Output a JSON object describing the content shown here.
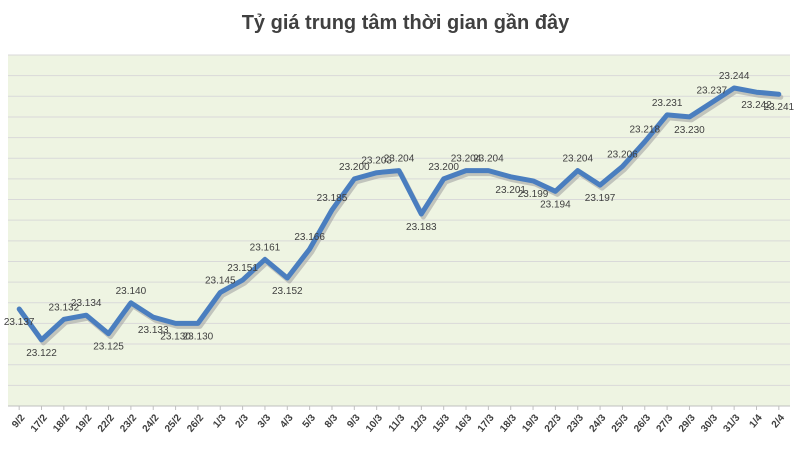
{
  "chart_data": {
    "type": "line",
    "title": "Tỷ giá trung tâm thời gian gần đây",
    "xlabel": "",
    "ylabel": "",
    "categories": [
      "9/2",
      "17/2",
      "18/2",
      "19/2",
      "22/2",
      "23/2",
      "24/2",
      "25/2",
      "26/2",
      "1/3",
      "2/3",
      "3/3",
      "4/3",
      "5/3",
      "8/3",
      "9/3",
      "10/3",
      "11/3",
      "12/3",
      "15/3",
      "16/3",
      "17/3",
      "18/3",
      "19/3",
      "22/3",
      "23/3",
      "24/3",
      "25/3",
      "26/3",
      "27/3",
      "29/3",
      "30/3",
      "31/3",
      "1/4",
      "2/4"
    ],
    "series": [
      {
        "name": "",
        "values": [
          23137,
          23122,
          23132,
          23134,
          23125,
          23140,
          23133,
          23130,
          23130,
          23145,
          23151,
          23161,
          23152,
          23166,
          23185,
          23200,
          23203,
          23204,
          23183,
          23200,
          23204,
          23204,
          23201,
          23199,
          23194,
          23204,
          23197,
          23206,
          23218,
          23231,
          23230,
          23237,
          23244,
          23242,
          23241
        ],
        "labels": [
          "23.137",
          "23.122",
          "23.132",
          "23.134",
          "23.125",
          "23.140",
          "23.133",
          "23.130",
          "23.130",
          "23.145",
          "23.151",
          "23.161",
          "23.152",
          "23.166",
          "23.185",
          "23.200",
          "23.203",
          "23.204",
          "23.183",
          "23.200",
          "23.204",
          "23.204",
          "23.201",
          "23.199",
          "23.194",
          "23.204",
          "23.197",
          "23.206",
          "23.218",
          "23.231",
          "23.230",
          "23.237",
          "23.244",
          "23.242",
          "23.241"
        ]
      }
    ],
    "ylim": [
      23090,
      23260
    ],
    "grid": true,
    "legend": "none",
    "colors": {
      "line": "#4a7ebf",
      "shadow": "#a3a3a3",
      "plot_bg": "#eef4e2",
      "gridline": "#d9d9d9",
      "text": "#404040"
    }
  }
}
